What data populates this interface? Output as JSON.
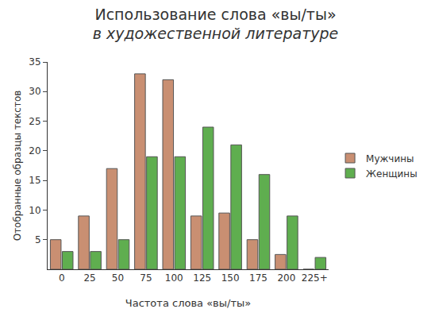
{
  "chart_data": {
    "type": "bar",
    "title": "Использование слова «вы/ты»",
    "subtitle": "в художественной литературе",
    "x_label": "Частота слова «вы/ты»",
    "y_label": "Отобранные образцы текстов",
    "categories": [
      "0",
      "25",
      "50",
      "75",
      "100",
      "125",
      "150",
      "175",
      "200",
      "225+"
    ],
    "series": [
      {
        "name": "Мужчины",
        "color": "#c98f72",
        "values": [
          5,
          9,
          17,
          33,
          32,
          9,
          9.5,
          5,
          2.5,
          0
        ]
      },
      {
        "name": "Женщины",
        "color": "#5fae4f",
        "values": [
          3,
          3,
          5,
          19,
          19,
          24,
          21,
          16,
          9,
          2
        ]
      }
    ],
    "ylim": [
      0,
      35
    ],
    "yticks": [
      5,
      10,
      15,
      20,
      25,
      30,
      35
    ],
    "grid": false,
    "legend": "right"
  }
}
